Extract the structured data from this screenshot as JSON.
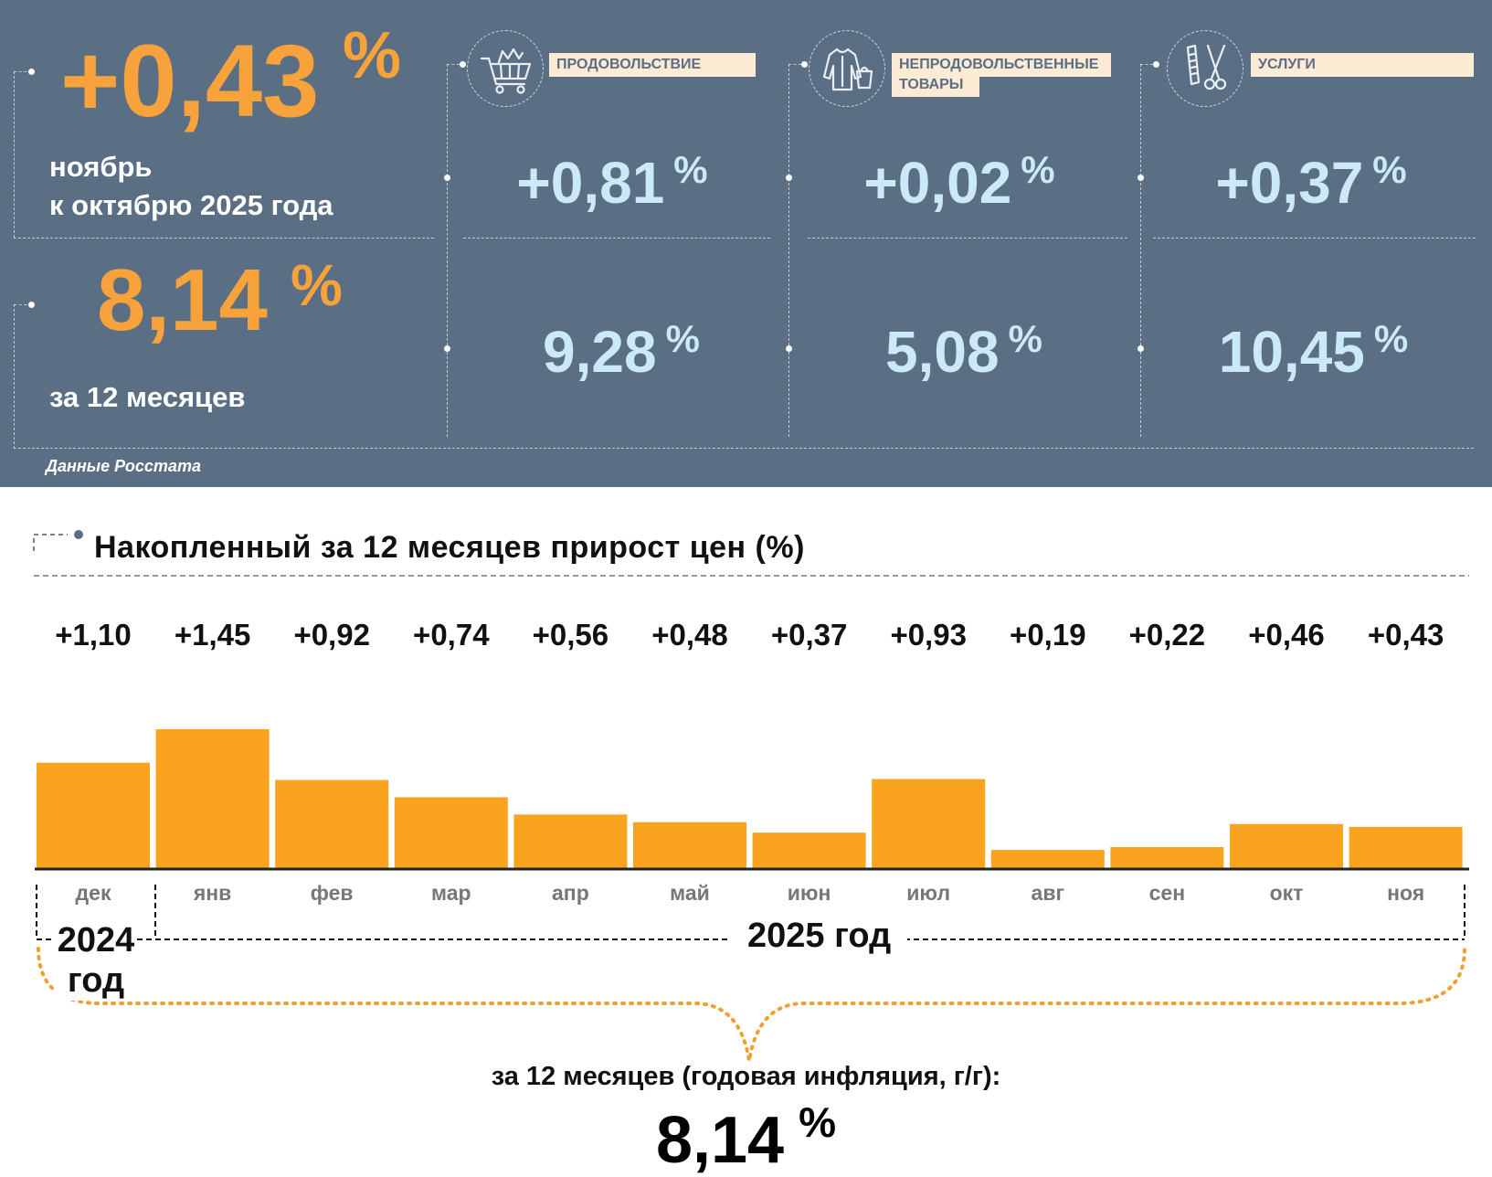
{
  "top": {
    "monthly": {
      "value": "+0,43",
      "unit": "%",
      "line1": "ноябрь",
      "line2": "к октябрю 2025 года"
    },
    "annual": {
      "value": "8,14",
      "unit": "%",
      "label": "за 12 месяцев"
    },
    "categories": [
      {
        "icon": "shopping-cart-icon",
        "label": "ПРОДОВОЛЬСТВИЕ",
        "monthly": "+0,81",
        "annual": "9,28"
      },
      {
        "icon": "clothing-icon",
        "label": "НЕПРОДОВОЛЬСТВЕННЫЕ ТОВАРЫ",
        "label_line1": "НЕПРОДОВОЛЬСТВЕННЫЕ",
        "label_line2": "ТОВАРЫ",
        "monthly": "+0,02",
        "annual": "5,08"
      },
      {
        "icon": "scissors-comb-icon",
        "label": "УСЛУГИ",
        "monthly": "+0,37",
        "annual": "10,45"
      }
    ],
    "unit": "%",
    "source": "Данные Росстата"
  },
  "chart_data": {
    "type": "bar",
    "title": "Накопленный за 12 месяцев прирост цен (%)",
    "categories": [
      "дек",
      "янв",
      "фев",
      "мар",
      "апр",
      "май",
      "июн",
      "июл",
      "авг",
      "сен",
      "окт",
      "ноя"
    ],
    "values": [
      1.1,
      1.45,
      0.92,
      0.74,
      0.56,
      0.48,
      0.37,
      0.93,
      0.19,
      0.22,
      0.46,
      0.43
    ],
    "value_labels": [
      "+1,10",
      "+1,45",
      "+0,92",
      "+0,74",
      "+0,56",
      "+0,48",
      "+0,37",
      "+0,93",
      "+0,19",
      "+0,22",
      "+0,46",
      "+0,43"
    ],
    "ylim": [
      0,
      1.45
    ],
    "grid": false,
    "bar_color": "#f9a31f",
    "year_groups": [
      {
        "label": "2024 год",
        "line1": "2024",
        "line2": "год",
        "months": [
          "дек"
        ]
      },
      {
        "label": "2025 год",
        "months": [
          "янв",
          "фев",
          "мар",
          "апр",
          "май",
          "июн",
          "июл",
          "авг",
          "сен",
          "окт",
          "ноя"
        ]
      }
    ],
    "annual_caption": "за 12 месяцев (годовая инфляция, г/г):",
    "annual_value": "8,14",
    "annual_unit": "%"
  }
}
